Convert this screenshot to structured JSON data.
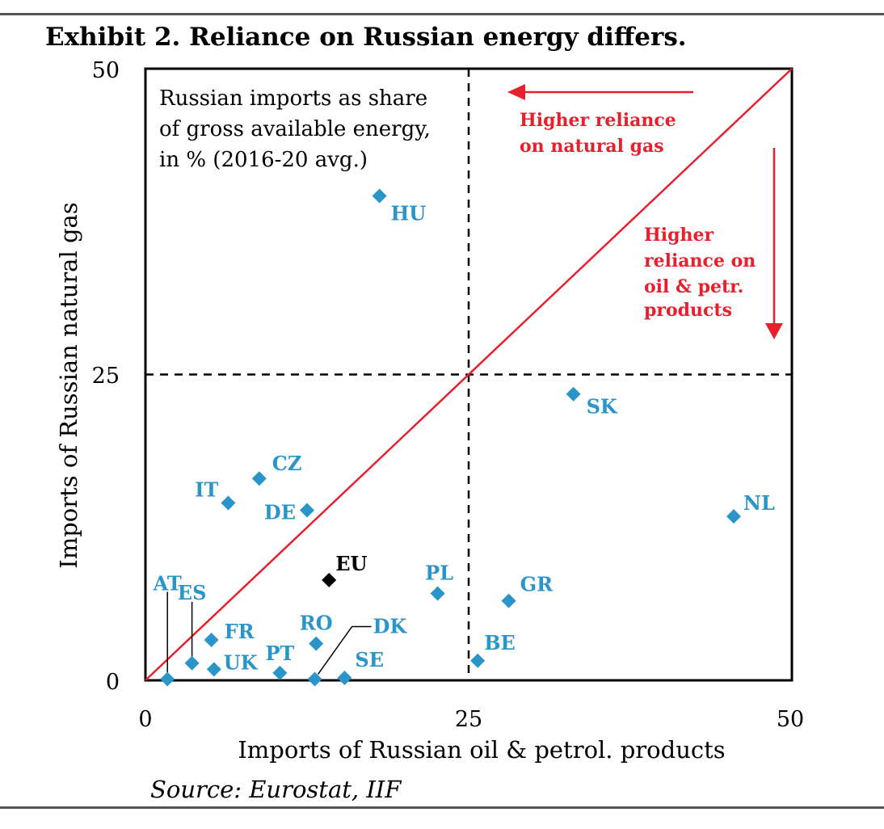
{
  "title": "Exhibit 2. Reliance on Russian energy differs.",
  "source": "Source: Eurostat, IIF",
  "chart_data": {
    "type": "scatter",
    "xlabel": "Imports of Russian oil & petrol. products",
    "ylabel": "Imports of Russian natural gas",
    "xlim": [
      0,
      50
    ],
    "ylim": [
      0,
      50
    ],
    "xticks": [
      "0",
      "25",
      "50"
    ],
    "yticks": [
      "0",
      "25",
      "50"
    ],
    "annotation": [
      "Russian imports as share",
      "of gross available energy,",
      "in % (2016-20 avg.)"
    ],
    "arrow_gas_label": [
      "Higher reliance",
      "on natural gas"
    ],
    "arrow_oil_label": [
      "Higher",
      "reliance on",
      "oil & petr.",
      "products"
    ],
    "colors": {
      "point": "#2a95c9",
      "eu": "#000000",
      "accent": "#e8202e"
    },
    "points": [
      {
        "label": "HU",
        "x": 18.1,
        "y": 39.6
      },
      {
        "label": "SK",
        "x": 33.1,
        "y": 23.4
      },
      {
        "label": "NL",
        "x": 45.5,
        "y": 13.4
      },
      {
        "label": "CZ",
        "x": 8.8,
        "y": 16.5
      },
      {
        "label": "IT",
        "x": 6.4,
        "y": 14.5
      },
      {
        "label": "DE",
        "x": 12.5,
        "y": 13.9
      },
      {
        "label": "EU",
        "x": 14.2,
        "y": 8.2
      },
      {
        "label": "PL",
        "x": 22.6,
        "y": 7.1
      },
      {
        "label": "GR",
        "x": 28.1,
        "y": 6.5
      },
      {
        "label": "AT",
        "x": 1.7,
        "y": 0.1
      },
      {
        "label": "ES",
        "x": 3.6,
        "y": 1.4
      },
      {
        "label": "FR",
        "x": 5.1,
        "y": 3.3
      },
      {
        "label": "UK",
        "x": 5.3,
        "y": 0.9
      },
      {
        "label": "RO",
        "x": 13.2,
        "y": 3.0
      },
      {
        "label": "PT",
        "x": 10.4,
        "y": 0.6
      },
      {
        "label": "DK",
        "x": 13.1,
        "y": 0.1
      },
      {
        "label": "SE",
        "x": 15.4,
        "y": 0.2
      },
      {
        "label": "BE",
        "x": 25.7,
        "y": 1.6
      }
    ]
  }
}
